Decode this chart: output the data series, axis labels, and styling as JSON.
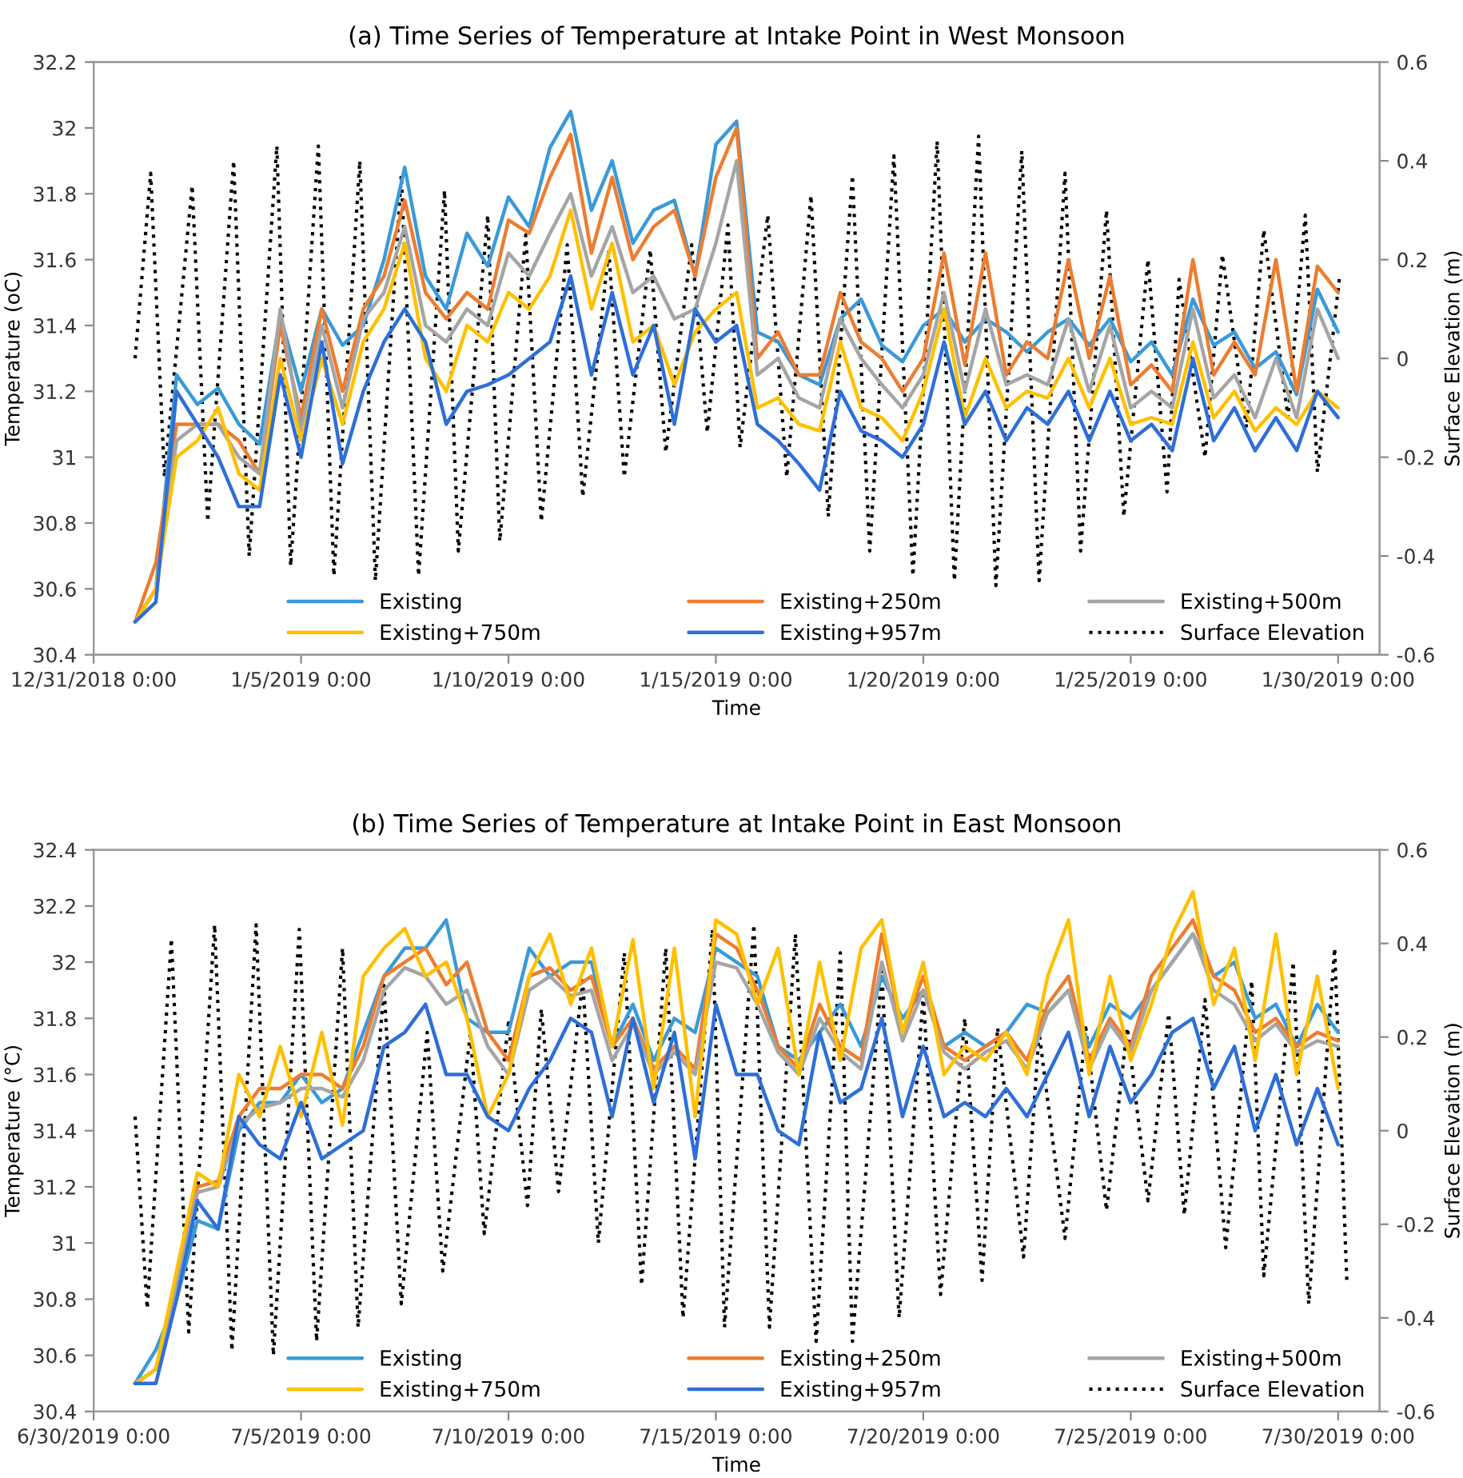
{
  "chart_data": [
    {
      "type": "line",
      "title": "(a) Time Series of Temperature at Intake Point in West Monsoon",
      "xlabel": "Time",
      "ylabel": "Temperature (oC)",
      "y2label": "Surface Elevation (m)",
      "xlim": [
        "2018-12-31",
        "2019-01-31"
      ],
      "xticks": [
        {
          "value": "2018-12-31",
          "label": "12/31/2018 0:00"
        },
        {
          "value": "2019-01-05",
          "label": "1/5/2019 0:00"
        },
        {
          "value": "2019-01-10",
          "label": "1/10/2019 0:00"
        },
        {
          "value": "2019-01-15",
          "label": "1/15/2019 0:00"
        },
        {
          "value": "2019-01-20",
          "label": "1/20/2019 0:00"
        },
        {
          "value": "2019-01-25",
          "label": "1/25/2019 0:00"
        },
        {
          "value": "2019-01-30",
          "label": "1/30/2019 0:00"
        }
      ],
      "ylim": [
        30.4,
        32.2
      ],
      "yticks": [
        30.4,
        30.6,
        30.8,
        31,
        31.2,
        31.4,
        31.6,
        31.8,
        32,
        32.2
      ],
      "y2lim": [
        -0.6,
        0.6
      ],
      "y2ticks": [
        -0.6,
        -0.4,
        -0.2,
        0,
        0.2,
        0.4,
        0.6
      ],
      "grid": false,
      "legend": "bottom",
      "marker": "none",
      "x": [
        "2019-01-01T00:00",
        "2019-01-01T12:00",
        "2019-01-02T00:00",
        "2019-01-02T12:00",
        "2019-01-03T00:00",
        "2019-01-03T12:00",
        "2019-01-04T00:00",
        "2019-01-04T12:00",
        "2019-01-05T00:00",
        "2019-01-05T12:00",
        "2019-01-06T00:00",
        "2019-01-06T12:00",
        "2019-01-07T00:00",
        "2019-01-07T12:00",
        "2019-01-08T00:00",
        "2019-01-08T12:00",
        "2019-01-09T00:00",
        "2019-01-09T12:00",
        "2019-01-10T00:00",
        "2019-01-10T12:00",
        "2019-01-11T00:00",
        "2019-01-11T12:00",
        "2019-01-12T00:00",
        "2019-01-12T12:00",
        "2019-01-13T00:00",
        "2019-01-13T12:00",
        "2019-01-14T00:00",
        "2019-01-14T12:00",
        "2019-01-15T00:00",
        "2019-01-15T12:00",
        "2019-01-16T00:00",
        "2019-01-16T12:00",
        "2019-01-17T00:00",
        "2019-01-17T12:00",
        "2019-01-18T00:00",
        "2019-01-18T12:00",
        "2019-01-19T00:00",
        "2019-01-19T12:00",
        "2019-01-20T00:00",
        "2019-01-20T12:00",
        "2019-01-21T00:00",
        "2019-01-21T12:00",
        "2019-01-22T00:00",
        "2019-01-22T12:00",
        "2019-01-23T00:00",
        "2019-01-23T12:00",
        "2019-01-24T00:00",
        "2019-01-24T12:00",
        "2019-01-25T00:00",
        "2019-01-25T12:00",
        "2019-01-26T00:00",
        "2019-01-26T12:00",
        "2019-01-27T00:00",
        "2019-01-27T12:00",
        "2019-01-28T00:00",
        "2019-01-28T12:00",
        "2019-01-29T00:00",
        "2019-01-29T12:00",
        "2019-01-30T00:00"
      ],
      "series": [
        {
          "name": "Existing",
          "color": "#3a9ad9",
          "line_style": "solid",
          "values": [
            30.5,
            30.6,
            31.25,
            31.16,
            31.21,
            31.1,
            31.04,
            31.43,
            31.2,
            31.45,
            31.34,
            31.4,
            31.6,
            31.88,
            31.55,
            31.45,
            31.68,
            31.58,
            31.79,
            31.7,
            31.94,
            32.05,
            31.75,
            31.9,
            31.65,
            31.75,
            31.78,
            31.55,
            31.95,
            32.02,
            31.38,
            31.35,
            31.25,
            31.22,
            31.42,
            31.48,
            31.34,
            31.29,
            31.4,
            31.45,
            31.35,
            31.42,
            31.38,
            31.32,
            31.38,
            31.42,
            31.34,
            31.42,
            31.29,
            31.35,
            31.25,
            31.48,
            31.34,
            31.38,
            31.27,
            31.32,
            31.19,
            31.51,
            31.38
          ]
        },
        {
          "name": "Existing+250m",
          "color": "#ed7d31",
          "line_style": "solid",
          "values": [
            30.5,
            30.68,
            31.1,
            31.1,
            31.1,
            31.05,
            30.95,
            31.4,
            31.12,
            31.45,
            31.2,
            31.45,
            31.55,
            31.78,
            31.5,
            31.42,
            31.5,
            31.45,
            31.72,
            31.68,
            31.85,
            31.98,
            31.62,
            31.85,
            31.6,
            31.7,
            31.75,
            31.55,
            31.85,
            32.0,
            31.3,
            31.38,
            31.25,
            31.25,
            31.5,
            31.35,
            31.3,
            31.2,
            31.3,
            31.62,
            31.28,
            31.62,
            31.25,
            31.35,
            31.3,
            31.6,
            31.3,
            31.55,
            31.22,
            31.28,
            31.2,
            31.6,
            31.25,
            31.35,
            31.25,
            31.6,
            31.2,
            31.58,
            31.5
          ]
        },
        {
          "name": "Existing+500m",
          "color": "#a5a5a5",
          "line_style": "solid",
          "values": [
            30.5,
            30.6,
            31.05,
            31.1,
            31.1,
            31.0,
            30.95,
            31.45,
            31.08,
            31.4,
            31.15,
            31.42,
            31.5,
            31.7,
            31.4,
            31.35,
            31.45,
            31.4,
            31.62,
            31.55,
            31.68,
            31.8,
            31.55,
            31.7,
            31.5,
            31.55,
            31.42,
            31.45,
            31.65,
            31.9,
            31.25,
            31.3,
            31.18,
            31.15,
            31.42,
            31.3,
            31.22,
            31.15,
            31.25,
            31.5,
            31.2,
            31.45,
            31.22,
            31.25,
            31.22,
            31.42,
            31.2,
            31.4,
            31.15,
            31.2,
            31.15,
            31.45,
            31.18,
            31.25,
            31.12,
            31.3,
            31.12,
            31.45,
            31.3
          ]
        },
        {
          "name": "Existing+750m",
          "color": "#ffc000",
          "line_style": "solid",
          "values": [
            30.5,
            30.6,
            31.0,
            31.05,
            31.15,
            30.95,
            30.9,
            31.3,
            31.05,
            31.3,
            31.1,
            31.35,
            31.45,
            31.65,
            31.3,
            31.2,
            31.4,
            31.35,
            31.5,
            31.45,
            31.55,
            31.75,
            31.45,
            31.65,
            31.35,
            31.4,
            31.22,
            31.38,
            31.45,
            31.5,
            31.15,
            31.18,
            31.1,
            31.08,
            31.35,
            31.15,
            31.12,
            31.05,
            31.2,
            31.45,
            31.12,
            31.3,
            31.15,
            31.2,
            31.18,
            31.3,
            31.15,
            31.3,
            31.1,
            31.12,
            31.1,
            31.35,
            31.12,
            31.2,
            31.08,
            31.15,
            31.1,
            31.2,
            31.15
          ]
        },
        {
          "name": "Existing+957m",
          "color": "#2e6fd8",
          "line_style": "solid",
          "values": [
            30.5,
            30.56,
            31.2,
            31.1,
            31.0,
            30.85,
            30.85,
            31.25,
            31.0,
            31.35,
            30.98,
            31.2,
            31.35,
            31.45,
            31.35,
            31.1,
            31.2,
            31.22,
            31.25,
            31.3,
            31.35,
            31.55,
            31.25,
            31.5,
            31.25,
            31.4,
            31.1,
            31.45,
            31.35,
            31.4,
            31.1,
            31.05,
            30.98,
            30.9,
            31.2,
            31.08,
            31.05,
            31.0,
            31.1,
            31.35,
            31.1,
            31.2,
            31.05,
            31.15,
            31.1,
            31.2,
            31.05,
            31.2,
            31.05,
            31.1,
            31.02,
            31.3,
            31.05,
            31.15,
            31.02,
            31.12,
            31.02,
            31.2,
            31.12
          ]
        },
        {
          "name": "Surface Elevation",
          "color": "#000000",
          "line_style": "dotted",
          "axis": "y2",
          "x": [
            "2019-01-01T00:00",
            "2019-01-01T09:00",
            "2019-01-01T17:00",
            "2019-01-02T09:00",
            "2019-01-02T18:00",
            "2019-01-03T09:00",
            "2019-01-03T18:00",
            "2019-01-04T10:00",
            "2019-01-04T18:00",
            "2019-01-05T10:00",
            "2019-01-05T19:00",
            "2019-01-06T10:00",
            "2019-01-06T19:00",
            "2019-01-07T10:00",
            "2019-01-07T20:00",
            "2019-01-08T11:00",
            "2019-01-08T19:00",
            "2019-01-09T12:00",
            "2019-01-09T19:00",
            "2019-01-10T10:00",
            "2019-01-10T19:00",
            "2019-01-11T10:00",
            "2019-01-11T19:00",
            "2019-01-12T10:00",
            "2019-01-12T19:00",
            "2019-01-13T10:00",
            "2019-01-13T19:00",
            "2019-01-14T10:00",
            "2019-01-14T19:00",
            "2019-01-15T07:00",
            "2019-01-15T14:00",
            "2019-01-16T06:00",
            "2019-01-16T17:00",
            "2019-01-17T07:00",
            "2019-01-17T17:00",
            "2019-01-18T07:00",
            "2019-01-18T17:00",
            "2019-01-19T07:00",
            "2019-01-19T18:00",
            "2019-01-20T08:00",
            "2019-01-20T18:00",
            "2019-01-21T08:00",
            "2019-01-21T18:00",
            "2019-01-22T09:00",
            "2019-01-22T19:00",
            "2019-01-23T10:00",
            "2019-01-23T19:00",
            "2019-01-24T10:00",
            "2019-01-24T20:00",
            "2019-01-25T10:00",
            "2019-01-25T21:00",
            "2019-01-26T04:00",
            "2019-01-26T19:00",
            "2019-01-27T05:00",
            "2019-01-27T19:00",
            "2019-01-28T05:00",
            "2019-01-28T19:00",
            "2019-01-29T05:00",
            "2019-01-29T12:00",
            "2019-01-30T01:00"
          ],
          "values": [
            0.0,
            0.375,
            -0.24,
            0.35,
            -0.33,
            0.4,
            -0.4,
            0.43,
            -0.42,
            0.43,
            -0.44,
            0.4,
            -0.45,
            0.37,
            -0.44,
            0.34,
            -0.39,
            0.29,
            -0.37,
            0.25,
            -0.33,
            0.23,
            -0.28,
            0.22,
            -0.24,
            0.22,
            -0.19,
            0.23,
            -0.15,
            0.27,
            -0.18,
            0.29,
            -0.24,
            0.33,
            -0.32,
            0.37,
            -0.39,
            0.41,
            -0.44,
            0.44,
            -0.45,
            0.45,
            -0.46,
            0.42,
            -0.45,
            0.375,
            -0.39,
            0.3,
            -0.32,
            0.2,
            -0.27,
            0.16,
            -0.2,
            0.21,
            -0.14,
            0.26,
            -0.12,
            0.29,
            -0.23,
            0.17
          ]
        }
      ]
    },
    {
      "type": "line",
      "title": "(b) Time Series of Temperature at Intake Point in East Monsoon",
      "xlabel": "Time",
      "ylabel": "Temperature (°C)",
      "y2label": "Surface Elevation (m)",
      "xlim": [
        "2019-06-30",
        "2019-07-31"
      ],
      "xticks": [
        {
          "value": "2019-06-30",
          "label": "6/30/2019 0:00"
        },
        {
          "value": "2019-07-05",
          "label": "7/5/2019 0:00"
        },
        {
          "value": "2019-07-10",
          "label": "7/10/2019 0:00"
        },
        {
          "value": "2019-07-15",
          "label": "7/15/2019 0:00"
        },
        {
          "value": "2019-07-20",
          "label": "7/20/2019 0:00"
        },
        {
          "value": "2019-07-25",
          "label": "7/25/2019 0:00"
        },
        {
          "value": "2019-07-30",
          "label": "7/30/2019 0:00"
        }
      ],
      "ylim": [
        30.4,
        32.4
      ],
      "yticks": [
        30.4,
        30.6,
        30.8,
        31,
        31.2,
        31.4,
        31.6,
        31.8,
        32,
        32.2,
        32.4
      ],
      "y2lim": [
        -0.6,
        0.6
      ],
      "y2ticks": [
        -0.6,
        -0.4,
        -0.2,
        0,
        0.2,
        0.4,
        0.6
      ],
      "grid": false,
      "legend": "bottom",
      "marker": "none",
      "x": [
        "2019-07-01T00:00",
        "2019-07-01T12:00",
        "2019-07-02T00:00",
        "2019-07-02T12:00",
        "2019-07-03T00:00",
        "2019-07-03T12:00",
        "2019-07-04T00:00",
        "2019-07-04T12:00",
        "2019-07-05T00:00",
        "2019-07-05T12:00",
        "2019-07-06T00:00",
        "2019-07-06T12:00",
        "2019-07-07T00:00",
        "2019-07-07T12:00",
        "2019-07-08T00:00",
        "2019-07-08T12:00",
        "2019-07-09T00:00",
        "2019-07-09T12:00",
        "2019-07-10T00:00",
        "2019-07-10T12:00",
        "2019-07-11T00:00",
        "2019-07-11T12:00",
        "2019-07-12T00:00",
        "2019-07-12T12:00",
        "2019-07-13T00:00",
        "2019-07-13T12:00",
        "2019-07-14T00:00",
        "2019-07-14T12:00",
        "2019-07-15T00:00",
        "2019-07-15T12:00",
        "2019-07-16T00:00",
        "2019-07-16T12:00",
        "2019-07-17T00:00",
        "2019-07-17T12:00",
        "2019-07-18T00:00",
        "2019-07-18T12:00",
        "2019-07-19T00:00",
        "2019-07-19T12:00",
        "2019-07-20T00:00",
        "2019-07-20T12:00",
        "2019-07-21T00:00",
        "2019-07-21T12:00",
        "2019-07-22T00:00",
        "2019-07-22T12:00",
        "2019-07-23T00:00",
        "2019-07-23T12:00",
        "2019-07-24T00:00",
        "2019-07-24T12:00",
        "2019-07-25T00:00",
        "2019-07-25T12:00",
        "2019-07-26T00:00",
        "2019-07-26T12:00",
        "2019-07-27T00:00",
        "2019-07-27T12:00",
        "2019-07-28T00:00",
        "2019-07-28T12:00",
        "2019-07-29T00:00",
        "2019-07-29T12:00",
        "2019-07-30T00:00"
      ],
      "series": [
        {
          "name": "Existing",
          "color": "#3a9ad9",
          "line_style": "solid",
          "values": [
            30.5,
            30.62,
            30.8,
            31.08,
            31.05,
            31.4,
            31.5,
            31.5,
            31.6,
            31.5,
            31.55,
            31.75,
            31.95,
            32.05,
            32.05,
            32.15,
            31.8,
            31.75,
            31.75,
            32.05,
            31.95,
            32.0,
            32.0,
            31.7,
            31.85,
            31.65,
            31.8,
            31.75,
            32.05,
            32.0,
            31.95,
            31.7,
            31.65,
            31.75,
            31.85,
            31.7,
            31.95,
            31.8,
            31.9,
            31.7,
            31.75,
            31.7,
            31.75,
            31.85,
            31.82,
            31.9,
            31.7,
            31.85,
            31.8,
            31.9,
            32.0,
            32.1,
            31.95,
            32.0,
            31.8,
            31.85,
            31.7,
            31.85,
            31.75
          ]
        },
        {
          "name": "Existing+250m",
          "color": "#ed7d31",
          "line_style": "solid",
          "values": [
            30.5,
            30.55,
            30.85,
            31.2,
            31.22,
            31.45,
            31.55,
            31.55,
            31.6,
            31.6,
            31.55,
            31.7,
            31.95,
            32.0,
            32.05,
            31.92,
            32.0,
            31.75,
            31.65,
            31.95,
            31.98,
            31.9,
            31.95,
            31.7,
            31.8,
            31.62,
            31.7,
            31.62,
            32.1,
            32.05,
            31.9,
            31.7,
            31.62,
            31.85,
            31.7,
            31.65,
            32.1,
            31.75,
            31.95,
            31.7,
            31.65,
            31.7,
            31.75,
            31.65,
            31.85,
            31.95,
            31.65,
            31.8,
            31.7,
            31.95,
            32.05,
            32.15,
            31.95,
            31.9,
            31.75,
            31.8,
            31.7,
            31.75,
            31.72
          ]
        },
        {
          "name": "Existing+500m",
          "color": "#a5a5a5",
          "line_style": "solid",
          "values": [
            30.5,
            30.55,
            30.85,
            31.18,
            31.2,
            31.42,
            31.48,
            31.5,
            31.55,
            31.55,
            31.52,
            31.65,
            31.9,
            31.98,
            31.95,
            31.85,
            31.9,
            31.7,
            31.6,
            31.9,
            31.95,
            31.88,
            31.9,
            31.65,
            31.78,
            31.6,
            31.68,
            31.6,
            32.0,
            31.98,
            31.85,
            31.68,
            31.6,
            31.8,
            31.68,
            31.62,
            32.0,
            31.72,
            31.9,
            31.68,
            31.62,
            31.68,
            31.72,
            31.62,
            31.82,
            31.9,
            31.62,
            31.78,
            31.68,
            31.9,
            32.0,
            32.1,
            31.9,
            31.85,
            31.72,
            31.78,
            31.68,
            31.72,
            31.7
          ]
        },
        {
          "name": "Existing+750m",
          "color": "#ffc000",
          "line_style": "solid",
          "values": [
            30.5,
            30.55,
            30.9,
            31.25,
            31.2,
            31.6,
            31.45,
            31.7,
            31.45,
            31.75,
            31.42,
            31.95,
            32.05,
            32.12,
            31.95,
            32.0,
            31.8,
            31.45,
            31.6,
            31.95,
            32.1,
            31.85,
            32.05,
            31.7,
            32.08,
            31.55,
            32.05,
            31.45,
            32.15,
            32.1,
            31.85,
            32.05,
            31.6,
            32.0,
            31.65,
            32.05,
            32.15,
            31.75,
            32.0,
            31.6,
            31.7,
            31.65,
            31.75,
            31.6,
            31.95,
            32.15,
            31.6,
            31.95,
            31.65,
            31.85,
            32.1,
            32.25,
            31.85,
            32.05,
            31.65,
            32.1,
            31.6,
            31.95,
            31.55
          ]
        },
        {
          "name": "Existing+957m",
          "color": "#2e6fd8",
          "line_style": "solid",
          "values": [
            30.5,
            30.5,
            30.8,
            31.15,
            31.05,
            31.45,
            31.35,
            31.3,
            31.5,
            31.3,
            31.35,
            31.4,
            31.7,
            31.75,
            31.85,
            31.6,
            31.6,
            31.45,
            31.4,
            31.55,
            31.65,
            31.8,
            31.75,
            31.45,
            31.8,
            31.5,
            31.75,
            31.3,
            31.85,
            31.6,
            31.6,
            31.4,
            31.35,
            31.75,
            31.5,
            31.55,
            31.8,
            31.45,
            31.7,
            31.45,
            31.5,
            31.45,
            31.55,
            31.45,
            31.6,
            31.75,
            31.45,
            31.7,
            31.5,
            31.6,
            31.75,
            31.8,
            31.55,
            31.7,
            31.4,
            31.6,
            31.35,
            31.55,
            31.35
          ]
        },
        {
          "name": "Surface Elevation",
          "color": "#000000",
          "line_style": "dotted",
          "axis": "y2",
          "x": [
            "2019-07-01T00:00",
            "2019-07-01T07:00",
            "2019-07-01T21:00",
            "2019-07-02T07:00",
            "2019-07-02T22:00",
            "2019-07-03T08:00",
            "2019-07-03T22:00",
            "2019-07-04T08:00",
            "2019-07-04T23:00",
            "2019-07-05T09:00",
            "2019-07-06T00:00",
            "2019-07-06T09:00",
            "2019-07-07T00:00",
            "2019-07-07T10:00",
            "2019-07-08T01:00",
            "2019-07-08T10:00",
            "2019-07-09T02:00",
            "2019-07-09T10:00",
            "2019-07-10T00:00",
            "2019-07-10T11:00",
            "2019-07-10T19:00",
            "2019-07-11T05:00",
            "2019-07-11T19:00",
            "2019-07-12T04:00",
            "2019-07-12T19:00",
            "2019-07-13T05:00",
            "2019-07-13T19:00",
            "2019-07-14T05:00",
            "2019-07-14T22:00",
            "2019-07-15T05:00",
            "2019-07-15T22:00",
            "2019-07-16T07:00",
            "2019-07-16T22:00",
            "2019-07-17T10:00",
            "2019-07-18T00:00",
            "2019-07-18T07:00",
            "2019-07-19T00:00",
            "2019-07-19T10:00",
            "2019-07-20T00:00",
            "2019-07-20T10:00",
            "2019-07-21T00:00",
            "2019-07-21T10:00",
            "2019-07-21T19:00",
            "2019-07-22T10:00",
            "2019-07-22T19:00",
            "2019-07-23T10:00",
            "2019-07-23T22:00",
            "2019-07-24T10:00",
            "2019-07-24T22:00",
            "2019-07-25T10:00",
            "2019-07-25T22:00",
            "2019-07-26T07:00",
            "2019-07-26T19:00",
            "2019-07-27T07:00",
            "2019-07-27T22:00",
            "2019-07-28T05:00",
            "2019-07-28T22:00",
            "2019-07-29T07:00",
            "2019-07-29T22:00",
            "2019-07-30T05:00"
          ],
          "values": [
            0.03,
            -0.38,
            0.41,
            -0.43,
            0.44,
            -0.47,
            0.44,
            -0.48,
            0.43,
            -0.45,
            0.39,
            -0.42,
            0.31,
            -0.37,
            0.21,
            -0.3,
            0.21,
            -0.22,
            0.23,
            -0.16,
            0.26,
            -0.13,
            0.32,
            -0.24,
            0.38,
            -0.33,
            0.39,
            -0.4,
            0.43,
            -0.42,
            0.44,
            -0.42,
            0.42,
            -0.45,
            0.38,
            -0.45,
            0.34,
            -0.4,
            0.29,
            -0.35,
            0.24,
            -0.32,
            0.22,
            -0.27,
            0.21,
            -0.23,
            0.22,
            -0.17,
            0.22,
            -0.15,
            0.25,
            -0.18,
            0.28,
            -0.25,
            0.32,
            -0.31,
            0.36,
            -0.37,
            0.39,
            -0.32
          ]
        }
      ]
    }
  ]
}
